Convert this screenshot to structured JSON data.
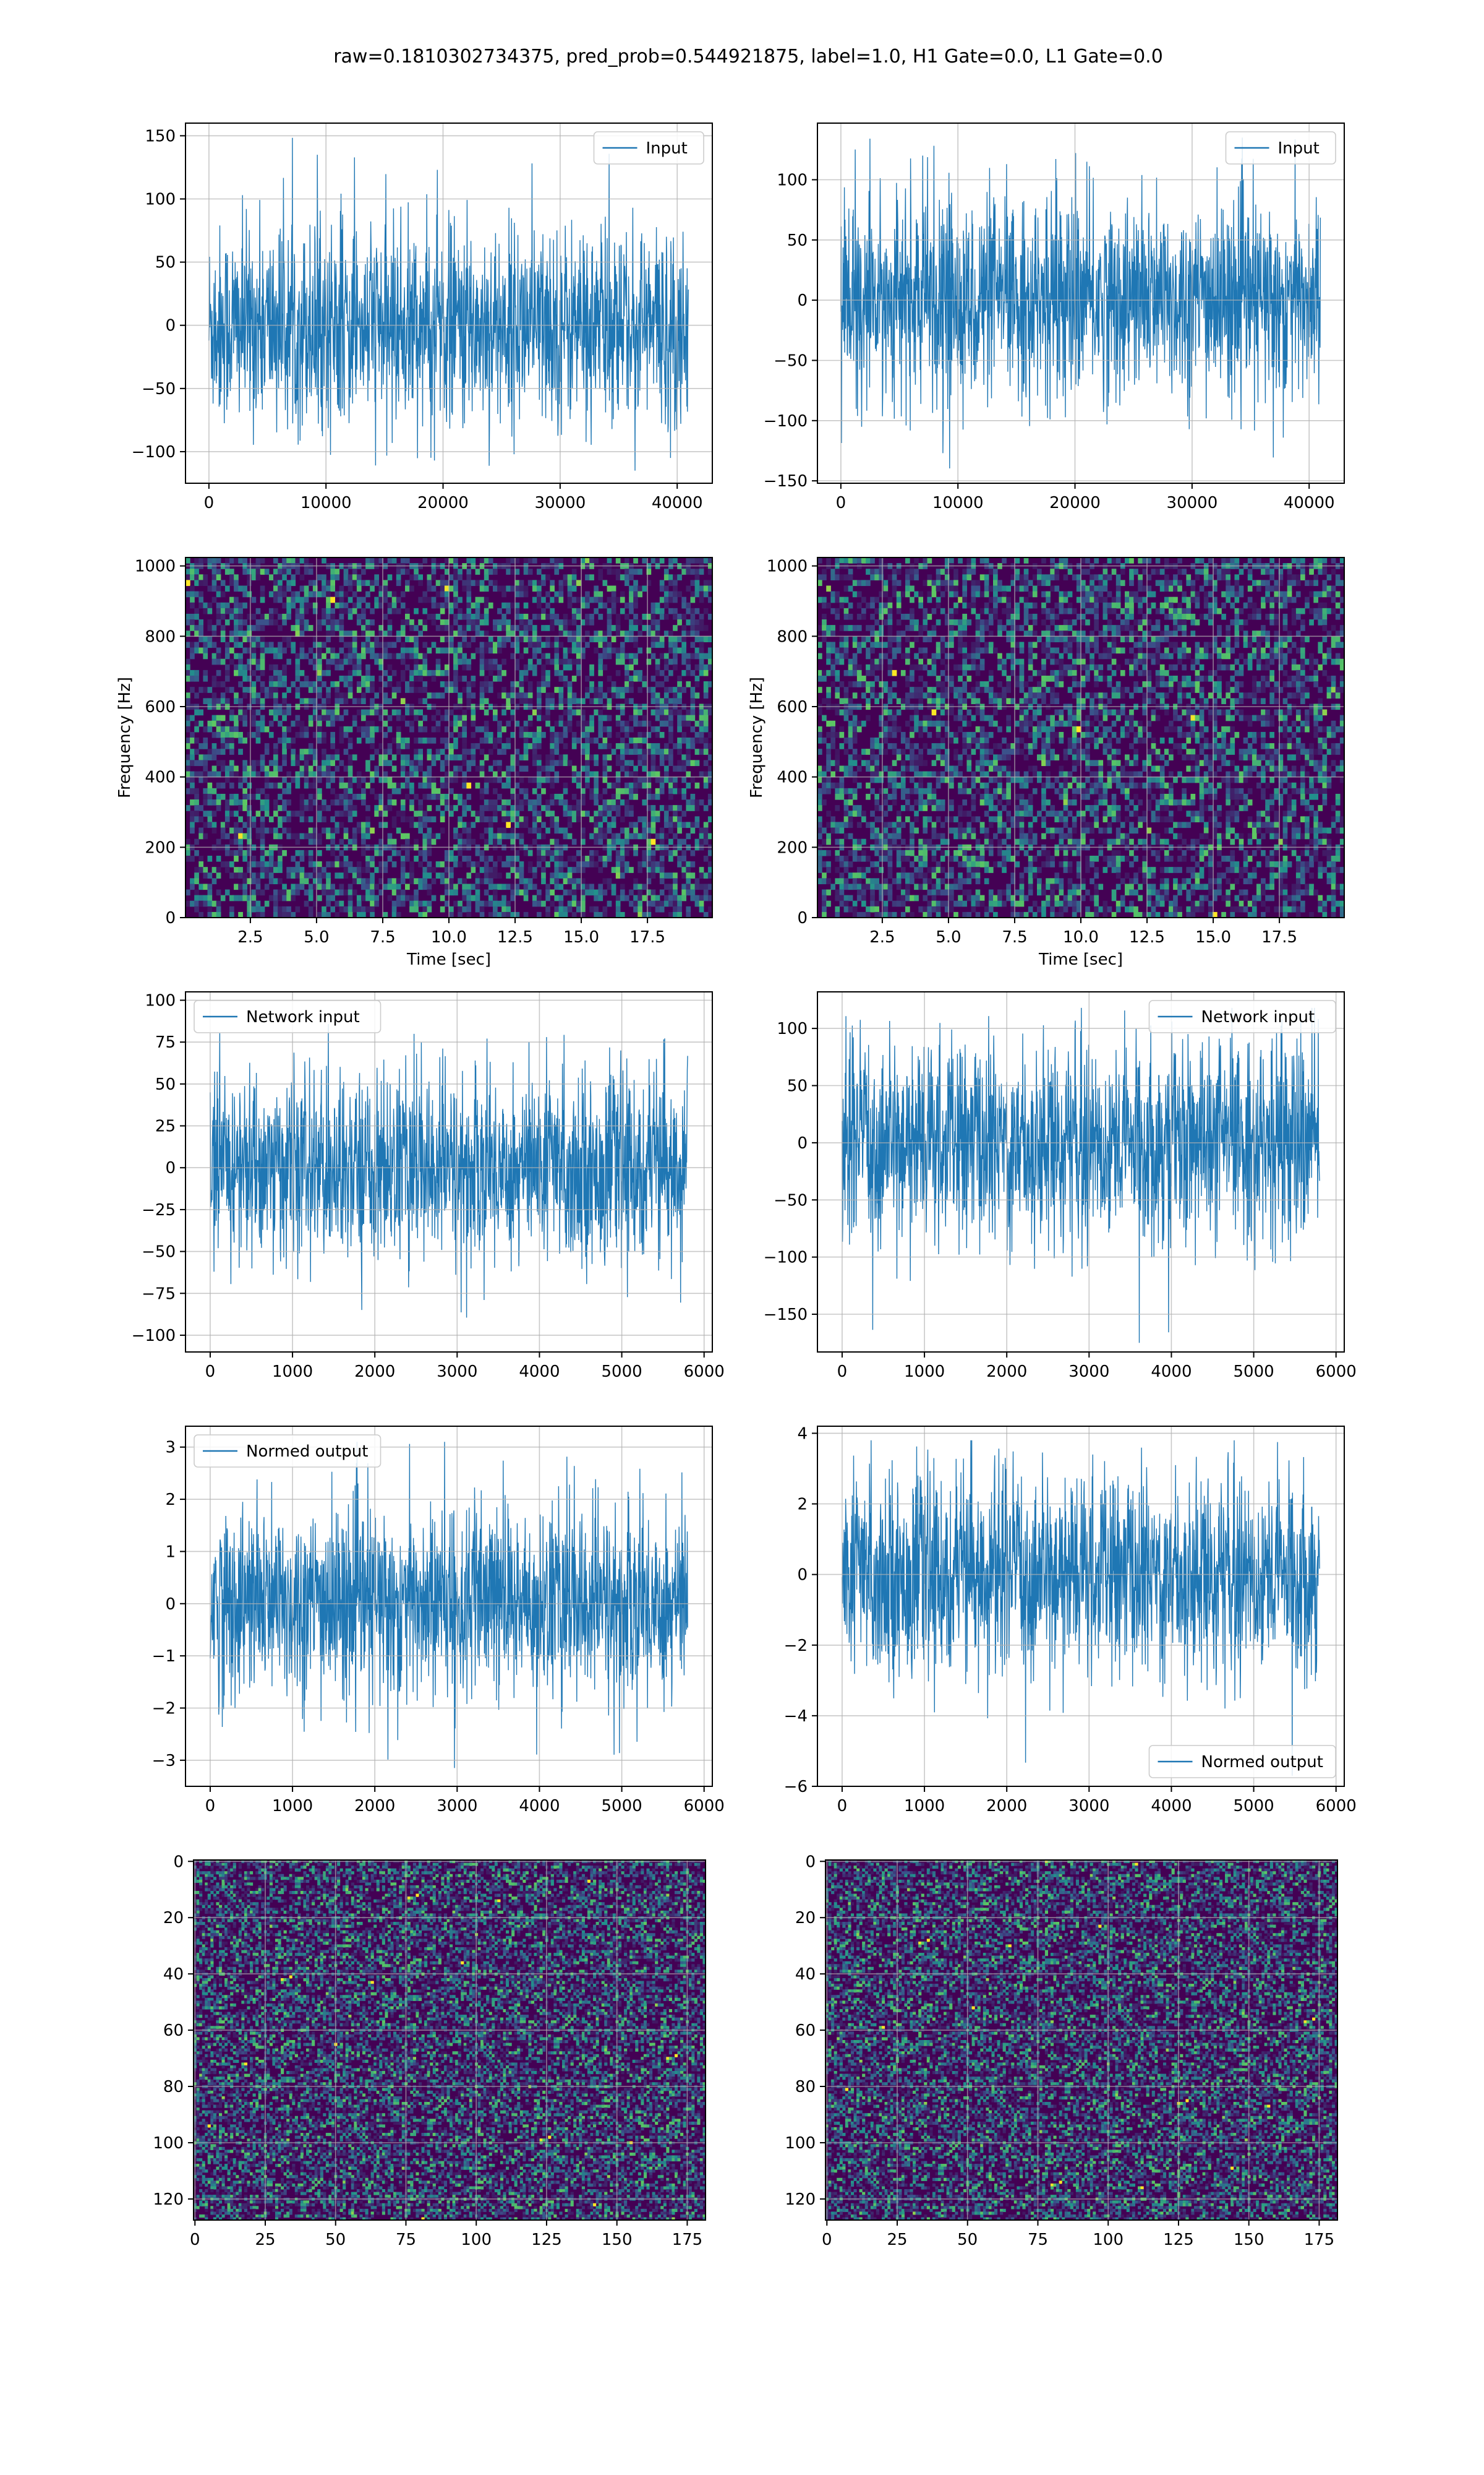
{
  "figure": {
    "title": "raw=0.1810302734375, pred_prob=0.544921875, label=1.0, H1 Gate=0.0, L1 Gate=0.0"
  },
  "colors": {
    "line": "#1f77b4",
    "grid": "#b0b0b0",
    "axes": "#000000",
    "viridis_low": "#440154",
    "viridis_high": "#fde725"
  },
  "chart_data": [
    {
      "id": "h1-input",
      "type": "line",
      "legend": "top-right",
      "series": [
        {
          "name": "Input",
          "samples": 40960,
          "amplitude": [
            -115,
            150
          ]
        }
      ],
      "xlim": [
        -2000,
        43000
      ],
      "ylim": [
        -125,
        160
      ],
      "xticks": [
        0,
        10000,
        20000,
        30000,
        40000
      ],
      "yticks": [
        -100,
        -50,
        0,
        50,
        100,
        150
      ],
      "xticklabels": [
        "0",
        "10000",
        "20000",
        "30000",
        "40000"
      ],
      "yticklabels": [
        "−100",
        "−50",
        "0",
        "50",
        "100",
        "150"
      ],
      "xlabel": "",
      "ylabel": "",
      "grid": true
    },
    {
      "id": "l1-input",
      "type": "line",
      "legend": "top-right",
      "series": [
        {
          "name": "Input",
          "samples": 40960,
          "amplitude": [
            -140,
            135
          ]
        }
      ],
      "xlim": [
        -2000,
        43000
      ],
      "ylim": [
        -152,
        147
      ],
      "xticks": [
        0,
        10000,
        20000,
        30000,
        40000
      ],
      "yticks": [
        -150,
        -100,
        -50,
        0,
        50,
        100
      ],
      "xticklabels": [
        "0",
        "10000",
        "20000",
        "30000",
        "40000"
      ],
      "yticklabels": [
        "−150",
        "−100",
        "−50",
        "0",
        "50",
        "100"
      ],
      "xlabel": "",
      "ylabel": "",
      "grid": true
    },
    {
      "id": "h1-spectrogram",
      "type": "heatmap",
      "colormap": "viridis",
      "xlim": [
        0.05,
        19.95
      ],
      "ylim": [
        0,
        1024
      ],
      "xticks": [
        2.5,
        5,
        7.5,
        10,
        12.5,
        15,
        17.5
      ],
      "yticks": [
        0,
        200,
        400,
        600,
        800,
        1000
      ],
      "xticklabels": [
        "2.5",
        "5.0",
        "7.5",
        "10.0",
        "12.5",
        "15.0",
        "17.5"
      ],
      "yticklabels": [
        "0",
        "200",
        "400",
        "600",
        "800",
        "1000"
      ],
      "xlabel": "Time [sec]",
      "ylabel": "Frequency [Hz]",
      "grid": true
    },
    {
      "id": "l1-spectrogram",
      "type": "heatmap",
      "colormap": "viridis",
      "xlim": [
        0.05,
        19.95
      ],
      "ylim": [
        0,
        1024
      ],
      "xticks": [
        2.5,
        5,
        7.5,
        10,
        12.5,
        15,
        17.5
      ],
      "yticks": [
        0,
        200,
        400,
        600,
        800,
        1000
      ],
      "xticklabels": [
        "2.5",
        "5.0",
        "7.5",
        "10.0",
        "12.5",
        "15.0",
        "17.5"
      ],
      "yticklabels": [
        "0",
        "200",
        "400",
        "600",
        "800",
        "1000"
      ],
      "xlabel": "Time [sec]",
      "ylabel": "Frequency [Hz]",
      "grid": true
    },
    {
      "id": "h1-network-input",
      "type": "line",
      "legend": "top-left",
      "series": [
        {
          "name": "Network input",
          "samples": 5800,
          "amplitude": [
            -100,
            88
          ]
        }
      ],
      "xlim": [
        -300,
        6100
      ],
      "ylim": [
        -110,
        105
      ],
      "xticks": [
        0,
        1000,
        2000,
        3000,
        4000,
        5000,
        6000
      ],
      "yticks": [
        -100,
        -75,
        -50,
        -25,
        0,
        25,
        50,
        75,
        100
      ],
      "xticklabels": [
        "0",
        "1000",
        "2000",
        "3000",
        "4000",
        "5000",
        "6000"
      ],
      "yticklabels": [
        "−100",
        "−75",
        "−50",
        "−25",
        "0",
        "25",
        "50",
        "75",
        "100"
      ],
      "xlabel": "",
      "ylabel": "",
      "grid": true
    },
    {
      "id": "l1-network-input",
      "type": "line",
      "legend": "top-right",
      "series": [
        {
          "name": "Network input",
          "samples": 5800,
          "amplitude": [
            -175,
            118
          ]
        }
      ],
      "xlim": [
        -300,
        6100
      ],
      "ylim": [
        -183,
        132
      ],
      "xticks": [
        0,
        1000,
        2000,
        3000,
        4000,
        5000,
        6000
      ],
      "yticks": [
        -150,
        -100,
        -50,
        0,
        50,
        100
      ],
      "xticklabels": [
        "0",
        "1000",
        "2000",
        "3000",
        "4000",
        "5000",
        "6000"
      ],
      "yticklabels": [
        "−150",
        "−100",
        "−50",
        "0",
        "50",
        "100"
      ],
      "xlabel": "",
      "ylabel": "",
      "grid": true
    },
    {
      "id": "h1-normed-output",
      "type": "line",
      "legend": "top-left",
      "series": [
        {
          "name": "Normed output",
          "samples": 5800,
          "amplitude": [
            -3.2,
            3.1
          ]
        }
      ],
      "xlim": [
        -300,
        6100
      ],
      "ylim": [
        -3.5,
        3.4
      ],
      "xticks": [
        0,
        1000,
        2000,
        3000,
        4000,
        5000,
        6000
      ],
      "yticks": [
        -3,
        -2,
        -1,
        0,
        1,
        2,
        3
      ],
      "xticklabels": [
        "0",
        "1000",
        "2000",
        "3000",
        "4000",
        "5000",
        "6000"
      ],
      "yticklabels": [
        "−3",
        "−2",
        "−1",
        "0",
        "1",
        "2",
        "3"
      ],
      "xlabel": "",
      "ylabel": "",
      "grid": true
    },
    {
      "id": "l1-normed-output",
      "type": "line",
      "legend": "bottom-right",
      "series": [
        {
          "name": "Normed output",
          "samples": 5800,
          "amplitude": [
            -5.7,
            3.8
          ]
        }
      ],
      "xlim": [
        -300,
        6100
      ],
      "ylim": [
        -6,
        4.2
      ],
      "xticks": [
        0,
        1000,
        2000,
        3000,
        4000,
        5000,
        6000
      ],
      "yticks": [
        -6,
        -4,
        -2,
        0,
        2,
        4
      ],
      "xticklabels": [
        "0",
        "1000",
        "2000",
        "3000",
        "4000",
        "5000",
        "6000"
      ],
      "yticklabels": [
        "−6",
        "−4",
        "−2",
        "0",
        "2",
        "4"
      ],
      "xlabel": "",
      "ylabel": "",
      "grid": true
    },
    {
      "id": "h1-matrix",
      "type": "heatmap",
      "colormap": "viridis",
      "rows": 128,
      "cols": 182,
      "xlim": [
        -0.5,
        181.5
      ],
      "ylim": [
        127.5,
        -0.5
      ],
      "xticks": [
        0,
        25,
        50,
        75,
        100,
        125,
        150,
        175
      ],
      "yticks": [
        0,
        20,
        40,
        60,
        80,
        100,
        120
      ],
      "xticklabels": [
        "0",
        "25",
        "50",
        "75",
        "100",
        "125",
        "150",
        "175"
      ],
      "yticklabels": [
        "0",
        "20",
        "40",
        "60",
        "80",
        "100",
        "120"
      ],
      "xlabel": "",
      "ylabel": "",
      "grid": true
    },
    {
      "id": "l1-matrix",
      "type": "heatmap",
      "colormap": "viridis",
      "rows": 128,
      "cols": 182,
      "xlim": [
        -0.5,
        181.5
      ],
      "ylim": [
        127.5,
        -0.5
      ],
      "xticks": [
        0,
        25,
        50,
        75,
        100,
        125,
        150,
        175
      ],
      "yticks": [
        0,
        20,
        40,
        60,
        80,
        100,
        120
      ],
      "xticklabels": [
        "0",
        "25",
        "50",
        "75",
        "100",
        "125",
        "150",
        "175"
      ],
      "yticklabels": [
        "0",
        "20",
        "40",
        "60",
        "80",
        "100",
        "120"
      ],
      "xlabel": "",
      "ylabel": "",
      "grid": true
    }
  ]
}
